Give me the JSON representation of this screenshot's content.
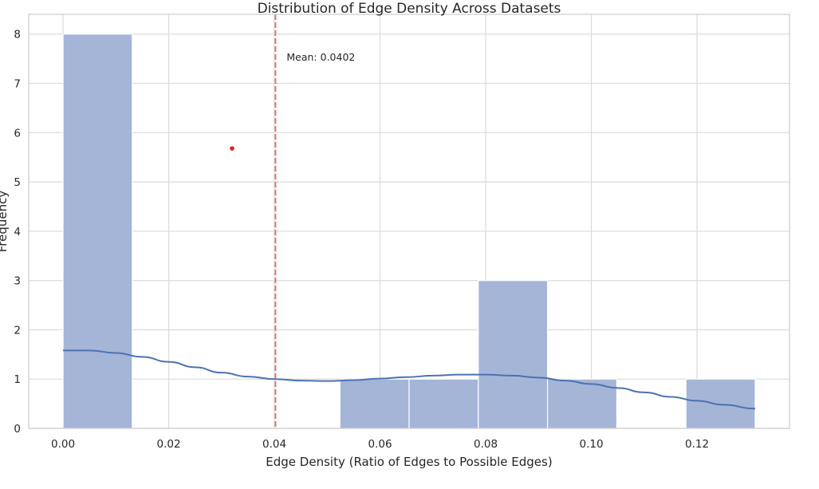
{
  "chart_data": {
    "type": "bar",
    "title": "Distribution of Edge Density Across Datasets",
    "xlabel": "Edge Density (Ratio of Edges to Possible Edges)",
    "ylabel": "Frequency",
    "xlim": [
      -0.0065,
      0.1375
    ],
    "ylim": [
      0,
      8.4
    ],
    "xticks": [
      0.0,
      0.02,
      0.04,
      0.06,
      0.08,
      0.1,
      0.12
    ],
    "xtick_labels": [
      "0.00",
      "0.02",
      "0.04",
      "0.06",
      "0.08",
      "0.10",
      "0.12"
    ],
    "yticks": [
      0,
      1,
      2,
      3,
      4,
      5,
      6,
      7,
      8
    ],
    "ytick_labels": [
      "0",
      "1",
      "2",
      "3",
      "4",
      "5",
      "6",
      "7",
      "8"
    ],
    "grid": true,
    "bins": [
      {
        "x0": 0.0,
        "x1": 0.0131,
        "count": 8
      },
      {
        "x0": 0.0131,
        "x1": 0.0262,
        "count": 0
      },
      {
        "x0": 0.0262,
        "x1": 0.0393,
        "count": 0
      },
      {
        "x0": 0.0393,
        "x1": 0.0524,
        "count": 0
      },
      {
        "x0": 0.0524,
        "x1": 0.0655,
        "count": 1
      },
      {
        "x0": 0.0655,
        "x1": 0.0786,
        "count": 1
      },
      {
        "x0": 0.0786,
        "x1": 0.0917,
        "count": 3
      },
      {
        "x0": 0.0917,
        "x1": 0.1048,
        "count": 1
      },
      {
        "x0": 0.1048,
        "x1": 0.1179,
        "count": 0
      },
      {
        "x0": 0.1179,
        "x1": 0.131,
        "count": 1
      }
    ],
    "kde": {
      "x": [
        0.0,
        0.005,
        0.01,
        0.015,
        0.02,
        0.025,
        0.03,
        0.035,
        0.04,
        0.045,
        0.05,
        0.055,
        0.06,
        0.065,
        0.07,
        0.075,
        0.08,
        0.085,
        0.09,
        0.095,
        0.1,
        0.105,
        0.11,
        0.115,
        0.12,
        0.125,
        0.131
      ],
      "y": [
        1.58,
        1.58,
        1.53,
        1.45,
        1.35,
        1.24,
        1.13,
        1.05,
        1.0,
        0.97,
        0.96,
        0.98,
        1.01,
        1.04,
        1.07,
        1.09,
        1.09,
        1.07,
        1.03,
        0.97,
        0.9,
        0.82,
        0.73,
        0.64,
        0.56,
        0.48,
        0.4
      ]
    },
    "mean": {
      "value": 0.0402,
      "label": "Mean: 0.0402"
    },
    "marker_point": {
      "x": 0.032,
      "y": 5.68
    },
    "colors": {
      "bar_fill": "#a5b5d8",
      "kde_line": "#4c72b0",
      "mean_line": "#d9777a",
      "marker": "#dd2222",
      "grid": "#dddddd",
      "frame": "#cccccc"
    }
  }
}
